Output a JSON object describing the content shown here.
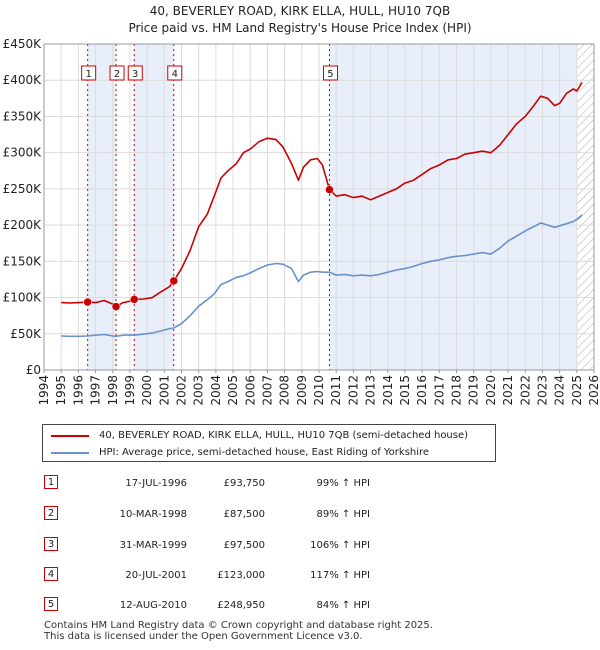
{
  "title_line1": "40, BEVERLEY ROAD, KIRK ELLA, HULL, HU10 7QB",
  "title_line2": "Price paid vs. HM Land Registry's House Price Index (HPI)",
  "chart_data": {
    "type": "line",
    "xlim": [
      1994,
      2026
    ],
    "ylim": [
      0,
      450000
    ],
    "x_ticks": [
      "1994",
      "1995",
      "1996",
      "1997",
      "1998",
      "1999",
      "2000",
      "2001",
      "2002",
      "2003",
      "2004",
      "2005",
      "2006",
      "2007",
      "2008",
      "2009",
      "2010",
      "2011",
      "2012",
      "2013",
      "2014",
      "2015",
      "2016",
      "2017",
      "2018",
      "2019",
      "2020",
      "2021",
      "2022",
      "2023",
      "2024",
      "2025",
      "2026"
    ],
    "y_ticks": [
      {
        "value": 0,
        "label": "£0"
      },
      {
        "value": 50000,
        "label": "£50K"
      },
      {
        "value": 100000,
        "label": "£100K"
      },
      {
        "value": 150000,
        "label": "£150K"
      },
      {
        "value": 200000,
        "label": "£200K"
      },
      {
        "value": 250000,
        "label": "£250K"
      },
      {
        "value": 300000,
        "label": "£300K"
      },
      {
        "value": 350000,
        "label": "£350K"
      },
      {
        "value": 400000,
        "label": "£400K"
      },
      {
        "value": 450000,
        "label": "£450K"
      }
    ],
    "grid": true,
    "hatched_future_from": 2025.0,
    "shaded_ranges": [
      [
        1996.54,
        1998.19
      ],
      [
        1999.25,
        2001.55
      ]
    ],
    "series": [
      {
        "name": "40, BEVERLEY ROAD, KIRK ELLA, HULL, HU10 7QB (semi-detached house)",
        "color": "#cc0000",
        "points": [
          [
            1995.0,
            93000
          ],
          [
            1995.5,
            92500
          ],
          [
            1996.0,
            93000
          ],
          [
            1996.54,
            93750
          ],
          [
            1997.0,
            93000
          ],
          [
            1997.5,
            96000
          ],
          [
            1998.0,
            91000
          ],
          [
            1998.19,
            87500
          ],
          [
            1998.6,
            93000
          ],
          [
            1999.0,
            95000
          ],
          [
            1999.25,
            97500
          ],
          [
            1999.8,
            98000
          ],
          [
            2000.3,
            100000
          ],
          [
            2000.8,
            108000
          ],
          [
            2001.3,
            115000
          ],
          [
            2001.55,
            123000
          ],
          [
            2002.0,
            140000
          ],
          [
            2002.5,
            165000
          ],
          [
            2003.0,
            198000
          ],
          [
            2003.5,
            215000
          ],
          [
            2003.9,
            240000
          ],
          [
            2004.3,
            265000
          ],
          [
            2004.7,
            275000
          ],
          [
            2005.2,
            285000
          ],
          [
            2005.6,
            300000
          ],
          [
            2006.0,
            305000
          ],
          [
            2006.5,
            315000
          ],
          [
            2007.0,
            320000
          ],
          [
            2007.5,
            318000
          ],
          [
            2007.9,
            308000
          ],
          [
            2008.4,
            285000
          ],
          [
            2008.8,
            262000
          ],
          [
            2009.1,
            280000
          ],
          [
            2009.5,
            290000
          ],
          [
            2009.9,
            292000
          ],
          [
            2010.2,
            283000
          ],
          [
            2010.61,
            248950
          ],
          [
            2011.0,
            240000
          ],
          [
            2011.5,
            242000
          ],
          [
            2012.0,
            238000
          ],
          [
            2012.5,
            240000
          ],
          [
            2013.0,
            235000
          ],
          [
            2013.5,
            240000
          ],
          [
            2014.0,
            245000
          ],
          [
            2014.5,
            250000
          ],
          [
            2015.0,
            258000
          ],
          [
            2015.5,
            262000
          ],
          [
            2016.0,
            270000
          ],
          [
            2016.5,
            278000
          ],
          [
            2017.0,
            283000
          ],
          [
            2017.5,
            290000
          ],
          [
            2018.0,
            292000
          ],
          [
            2018.5,
            298000
          ],
          [
            2019.0,
            300000
          ],
          [
            2019.5,
            302000
          ],
          [
            2020.0,
            300000
          ],
          [
            2020.5,
            310000
          ],
          [
            2021.0,
            325000
          ],
          [
            2021.5,
            340000
          ],
          [
            2022.0,
            350000
          ],
          [
            2022.5,
            365000
          ],
          [
            2022.9,
            378000
          ],
          [
            2023.3,
            375000
          ],
          [
            2023.7,
            365000
          ],
          [
            2024.0,
            368000
          ],
          [
            2024.4,
            382000
          ],
          [
            2024.8,
            388000
          ],
          [
            2025.0,
            385000
          ],
          [
            2025.3,
            397000
          ]
        ]
      },
      {
        "name": "HPI: Average price, semi-detached house, East Riding of Yorkshire",
        "color": "#6a93cc",
        "points": [
          [
            1995.0,
            47000
          ],
          [
            1995.5,
            46500
          ],
          [
            1996.0,
            46500
          ],
          [
            1996.54,
            47000
          ],
          [
            1997.0,
            48000
          ],
          [
            1997.5,
            49000
          ],
          [
            1998.0,
            47000
          ],
          [
            1998.19,
            46500
          ],
          [
            1998.6,
            48000
          ],
          [
            1999.0,
            48500
          ],
          [
            1999.25,
            48000
          ],
          [
            1999.8,
            49500
          ],
          [
            2000.3,
            51000
          ],
          [
            2000.8,
            54000
          ],
          [
            2001.3,
            57000
          ],
          [
            2001.55,
            58000
          ],
          [
            2002.0,
            64000
          ],
          [
            2002.5,
            75000
          ],
          [
            2003.0,
            88000
          ],
          [
            2003.5,
            97000
          ],
          [
            2003.9,
            105000
          ],
          [
            2004.3,
            118000
          ],
          [
            2004.7,
            122000
          ],
          [
            2005.2,
            128000
          ],
          [
            2005.6,
            130000
          ],
          [
            2006.0,
            134000
          ],
          [
            2006.5,
            140000
          ],
          [
            2007.0,
            145000
          ],
          [
            2007.5,
            147000
          ],
          [
            2007.9,
            146000
          ],
          [
            2008.4,
            140000
          ],
          [
            2008.8,
            122000
          ],
          [
            2009.1,
            131000
          ],
          [
            2009.5,
            135000
          ],
          [
            2009.9,
            136000
          ],
          [
            2010.2,
            135000
          ],
          [
            2010.61,
            135000
          ],
          [
            2011.0,
            131000
          ],
          [
            2011.5,
            132000
          ],
          [
            2012.0,
            130000
          ],
          [
            2012.5,
            131000
          ],
          [
            2013.0,
            130000
          ],
          [
            2013.5,
            132000
          ],
          [
            2014.0,
            135000
          ],
          [
            2014.5,
            138000
          ],
          [
            2015.0,
            140000
          ],
          [
            2015.5,
            143000
          ],
          [
            2016.0,
            147000
          ],
          [
            2016.5,
            150000
          ],
          [
            2017.0,
            152000
          ],
          [
            2017.5,
            155000
          ],
          [
            2018.0,
            157000
          ],
          [
            2018.5,
            158000
          ],
          [
            2019.0,
            160000
          ],
          [
            2019.5,
            162000
          ],
          [
            2020.0,
            160000
          ],
          [
            2020.5,
            168000
          ],
          [
            2021.0,
            178000
          ],
          [
            2021.5,
            185000
          ],
          [
            2022.0,
            192000
          ],
          [
            2022.5,
            198000
          ],
          [
            2022.9,
            203000
          ],
          [
            2023.3,
            200000
          ],
          [
            2023.7,
            197000
          ],
          [
            2024.0,
            199000
          ],
          [
            2024.4,
            202000
          ],
          [
            2024.8,
            205000
          ],
          [
            2025.0,
            208000
          ],
          [
            2025.3,
            214000
          ]
        ]
      }
    ],
    "transactions": [
      {
        "num": "1",
        "x": 1996.54,
        "price": 93750
      },
      {
        "num": "2",
        "x": 1998.19,
        "price": 87500
      },
      {
        "num": "3",
        "x": 1999.25,
        "price": 97500
      },
      {
        "num": "4",
        "x": 2001.55,
        "price": 123000
      },
      {
        "num": "5",
        "x": 2010.61,
        "price": 248950
      }
    ],
    "marker_label_value": 410000
  },
  "legend": {
    "items": [
      {
        "label": "40, BEVERLEY ROAD, KIRK ELLA, HULL, HU10 7QB (semi-detached house)",
        "color": "#cc0000"
      },
      {
        "label": "HPI: Average price, semi-detached house, East Riding of Yorkshire",
        "color": "#6a93cc"
      }
    ]
  },
  "transactions_table": [
    {
      "num": "1",
      "date": "17-JUL-1996",
      "price": "£93,750",
      "hpi": "99% ↑ HPI"
    },
    {
      "num": "2",
      "date": "10-MAR-1998",
      "price": "£87,500",
      "hpi": "89% ↑ HPI"
    },
    {
      "num": "3",
      "date": "31-MAR-1999",
      "price": "£97,500",
      "hpi": "106% ↑ HPI"
    },
    {
      "num": "4",
      "date": "20-JUL-2001",
      "price": "£123,000",
      "hpi": "117% ↑ HPI"
    },
    {
      "num": "5",
      "date": "12-AUG-2010",
      "price": "£248,950",
      "hpi": "84% ↑ HPI"
    }
  ],
  "footer": {
    "line1": "Contains HM Land Registry data © Crown copyright and database right 2025.",
    "line2": "This data is licensed under the Open Government Licence v3.0."
  }
}
